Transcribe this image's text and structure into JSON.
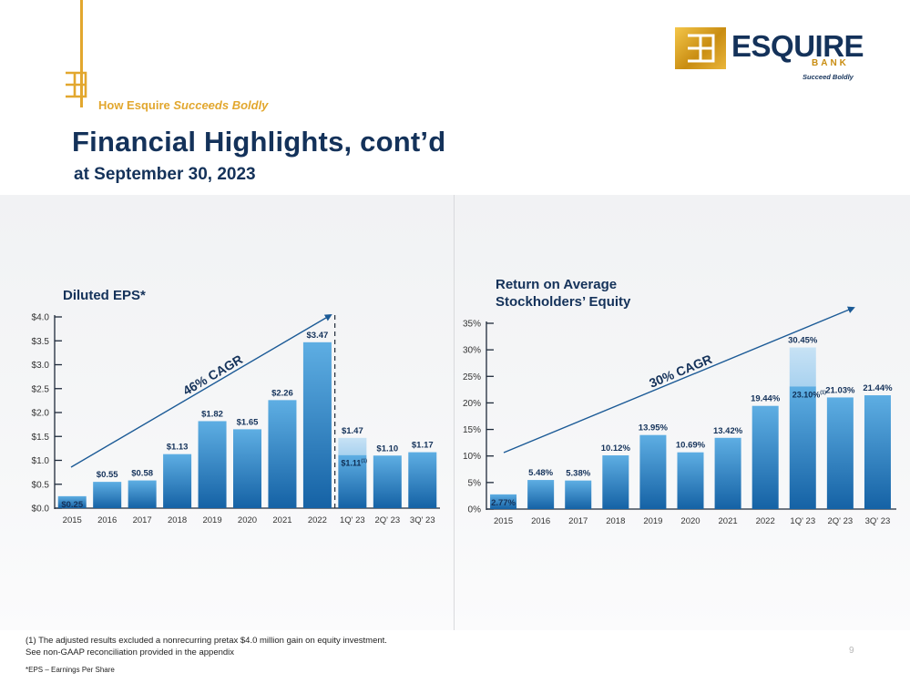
{
  "header": {
    "tagline_prefix": "How Esquire",
    "tagline_emphasis": "Succeeds Boldly",
    "title": "Financial Highlights, cont’d",
    "subtitle": "at September 30, 2023"
  },
  "brand": {
    "name": "ESQUIRE",
    "bank": "BANK",
    "slogan": "Succeed Boldly",
    "gold": "#e2a72e",
    "navy": "#14325a"
  },
  "chart_data": [
    {
      "type": "bar",
      "title": "Diluted EPS*",
      "categories": [
        "2015",
        "2016",
        "2017",
        "2018",
        "2019",
        "2020",
        "2021",
        "2022",
        "1Q' 23",
        "2Q' 23",
        "3Q' 23"
      ],
      "values": [
        0.25,
        0.55,
        0.58,
        1.13,
        1.82,
        1.65,
        2.26,
        3.47,
        1.47,
        1.1,
        1.17
      ],
      "value_labels": [
        "$0.25",
        "$0.55",
        "$0.58",
        "$1.13",
        "$1.82",
        "$1.65",
        "$2.26",
        "$3.47",
        "$1.47",
        "$1.10",
        "$1.17"
      ],
      "adjusted": {
        "category": "1Q' 23",
        "value": 1.11,
        "label": "$1.11",
        "note": "(1)"
      },
      "y_ticks": [
        "$0.0",
        "$0.5",
        "$1.0",
        "$1.5",
        "$2.0",
        "$2.5",
        "$3.0",
        "$3.5",
        "$4.0"
      ],
      "ylim": [
        0,
        4
      ],
      "annotation": "46% CAGR",
      "xlabel": "",
      "ylabel": ""
    },
    {
      "type": "bar",
      "title_lines": [
        "Return on Average",
        "Stockholders’ Equity"
      ],
      "categories": [
        "2015",
        "2016",
        "2017",
        "2018",
        "2019",
        "2020",
        "2021",
        "2022",
        "1Q' 23",
        "2Q' 23",
        "3Q' 23"
      ],
      "values": [
        2.77,
        5.48,
        5.38,
        10.12,
        13.95,
        10.69,
        13.42,
        19.44,
        30.45,
        21.03,
        21.44
      ],
      "value_labels": [
        "2.77%",
        "5.48%",
        "5.38%",
        "10.12%",
        "13.95%",
        "10.69%",
        "13.42%",
        "19.44%",
        "30.45%",
        "21.03%",
        "21.44%"
      ],
      "adjusted": {
        "category": "1Q' 23",
        "value": 23.1,
        "label": "23.10%",
        "note": "(1)"
      },
      "y_ticks": [
        "0%",
        "5%",
        "10%",
        "15%",
        "20%",
        "25%",
        "30%",
        "35%"
      ],
      "ylim": [
        0,
        35
      ],
      "annotation": "30% CAGR",
      "xlabel": "",
      "ylabel": ""
    }
  ],
  "footer": {
    "note_line1": "(1) The adjusted results excluded a nonrecurring pretax $4.0 million gain on equity investment.",
    "note_line2": "See non-GAAP reconciliation provided in the appendix",
    "eps_note": "*EPS – Earnings Per Share",
    "page": "9"
  }
}
